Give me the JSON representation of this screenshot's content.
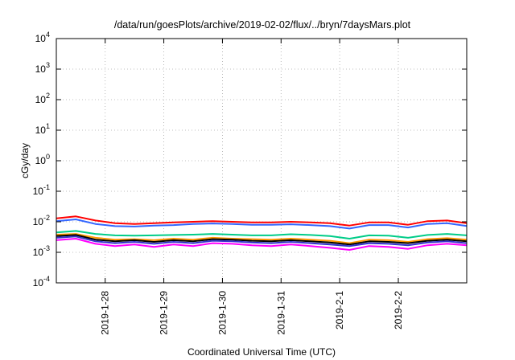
{
  "chart_data": {
    "type": "line",
    "title": "/data/run/goesPlots/archive/2019-02-02/flux/../bryn/7daysMars.plot",
    "xlabel": "Coordinated Universal Time (UTC)",
    "ylabel": "cGy/day",
    "yscale": "log",
    "ylim": [
      0.0001,
      10000
    ],
    "xlim": [
      "2019-01-27 04:00",
      "2019-02-03 04:00"
    ],
    "grid": true,
    "legend": "none",
    "y_ticks": [
      {
        "base": "10",
        "exp": "-4",
        "value": 0.0001
      },
      {
        "base": "10",
        "exp": "-3",
        "value": 0.001
      },
      {
        "base": "10",
        "exp": "-2",
        "value": 0.01
      },
      {
        "base": "10",
        "exp": "-1",
        "value": 0.1
      },
      {
        "base": "10",
        "exp": "0",
        "value": 1
      },
      {
        "base": "10",
        "exp": "1",
        "value": 10
      },
      {
        "base": "10",
        "exp": "2",
        "value": 100
      },
      {
        "base": "10",
        "exp": "3",
        "value": 1000
      },
      {
        "base": "10",
        "exp": "4",
        "value": 10000
      }
    ],
    "x_ticks": [
      "2019-1-28",
      "2019-1-29",
      "2019-1-30",
      "2019-1-31",
      "2019-2-1",
      "2019-2-2"
    ],
    "x_tick_dates": [
      "2019-01-28",
      "2019-01-29",
      "2019-01-30",
      "2019-01-31",
      "2019-02-01",
      "2019-02-02"
    ],
    "x": [
      "2019-01-27 04:00",
      "2019-01-27 12:00",
      "2019-01-27 20:00",
      "2019-01-28 04:00",
      "2019-01-28 12:00",
      "2019-01-28 20:00",
      "2019-01-29 04:00",
      "2019-01-29 12:00",
      "2019-01-29 20:00",
      "2019-01-30 04:00",
      "2019-01-30 12:00",
      "2019-01-30 20:00",
      "2019-01-31 04:00",
      "2019-01-31 12:00",
      "2019-01-31 20:00",
      "2019-02-01 04:00",
      "2019-02-01 12:00",
      "2019-02-01 20:00",
      "2019-02-02 04:00",
      "2019-02-02 12:00",
      "2019-02-02 20:00",
      "2019-02-03 04:00"
    ],
    "series": [
      {
        "color": "#ff0000",
        "values": [
          0.013,
          0.015,
          0.011,
          0.009,
          0.0085,
          0.009,
          0.0095,
          0.01,
          0.0105,
          0.01,
          0.0095,
          0.0095,
          0.01,
          0.0095,
          0.009,
          0.0075,
          0.0095,
          0.0095,
          0.008,
          0.0105,
          0.011,
          0.009
        ]
      },
      {
        "color": "#3366ff",
        "values": [
          0.0105,
          0.012,
          0.0085,
          0.0072,
          0.007,
          0.0075,
          0.0078,
          0.0085,
          0.0088,
          0.0085,
          0.008,
          0.008,
          0.0083,
          0.0078,
          0.0072,
          0.006,
          0.0078,
          0.0078,
          0.0065,
          0.0085,
          0.009,
          0.0073
        ]
      },
      {
        "color": "#00cc88",
        "values": [
          0.0045,
          0.005,
          0.004,
          0.0036,
          0.0035,
          0.0036,
          0.0037,
          0.0038,
          0.004,
          0.0038,
          0.0036,
          0.0036,
          0.0039,
          0.0037,
          0.0034,
          0.0028,
          0.0036,
          0.0035,
          0.003,
          0.0037,
          0.004,
          0.0036
        ]
      },
      {
        "color": "#ff9900",
        "values": [
          0.0038,
          0.004,
          0.003,
          0.0026,
          0.0027,
          0.0025,
          0.0028,
          0.0026,
          0.003,
          0.0028,
          0.0027,
          0.0026,
          0.0028,
          0.0026,
          0.0024,
          0.002,
          0.0026,
          0.0025,
          0.0022,
          0.0027,
          0.0029,
          0.0026
        ]
      },
      {
        "color": "#000000",
        "values": [
          0.0034,
          0.0037,
          0.0026,
          0.0023,
          0.0025,
          0.0022,
          0.0025,
          0.0023,
          0.0027,
          0.0026,
          0.0024,
          0.0023,
          0.0025,
          0.0023,
          0.0021,
          0.0018,
          0.0023,
          0.0022,
          0.002,
          0.0024,
          0.0026,
          0.0023
        ]
      },
      {
        "color": "#3333cc",
        "values": [
          0.003,
          0.0033,
          0.0023,
          0.002,
          0.0022,
          0.0019,
          0.0022,
          0.002,
          0.0024,
          0.0023,
          0.0021,
          0.002,
          0.0022,
          0.002,
          0.0018,
          0.0016,
          0.002,
          0.0019,
          0.0017,
          0.0021,
          0.0023,
          0.002
        ]
      },
      {
        "color": "#ff00ff",
        "values": [
          0.0025,
          0.0028,
          0.0019,
          0.0016,
          0.0018,
          0.0015,
          0.0018,
          0.0016,
          0.002,
          0.0019,
          0.0017,
          0.0016,
          0.0018,
          0.0016,
          0.0014,
          0.0012,
          0.0016,
          0.0015,
          0.0013,
          0.0017,
          0.0019,
          0.0017
        ]
      }
    ]
  }
}
